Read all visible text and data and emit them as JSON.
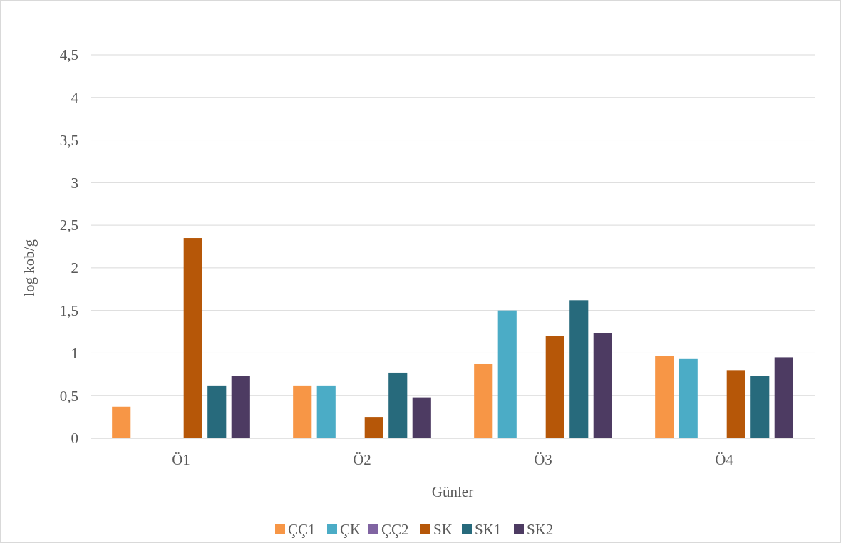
{
  "chart_data": {
    "type": "bar",
    "xlabel": "Günler",
    "ylabel": "log kob/g",
    "categories": [
      "Ö1",
      "Ö2",
      "Ö3",
      "Ö4"
    ],
    "series": [
      {
        "name": "ÇÇ1",
        "color": "#f79646",
        "values": [
          0.37,
          0.62,
          0.87,
          0.97
        ]
      },
      {
        "name": "ÇK",
        "color": "#4bacc6",
        "values": [
          0,
          0.62,
          1.5,
          0.93
        ]
      },
      {
        "name": "ÇÇ2",
        "color": "#8064a2",
        "values": [
          0,
          0,
          0,
          0
        ]
      },
      {
        "name": "SK",
        "color": "#b65708",
        "values": [
          2.35,
          0.25,
          1.2,
          0.8
        ]
      },
      {
        "name": "SK1",
        "color": "#276a7c",
        "values": [
          0.62,
          0.77,
          1.62,
          0.73
        ]
      },
      {
        "name": "SK2",
        "color": "#4d3b62",
        "values": [
          0.73,
          0.48,
          1.23,
          0.95
        ]
      }
    ],
    "ylim": [
      0,
      4.5
    ],
    "yticks": [
      0,
      {
        "value": 0.5,
        "label": "0,5"
      },
      1,
      {
        "value": 1.5,
        "label": "1,5"
      },
      2,
      {
        "value": 2.5,
        "label": "2,5"
      },
      3,
      {
        "value": 3.5,
        "label": "3,5"
      },
      4,
      {
        "value": 4.5,
        "label": "4,5"
      }
    ],
    "grid": "y",
    "legend": "bottom"
  }
}
